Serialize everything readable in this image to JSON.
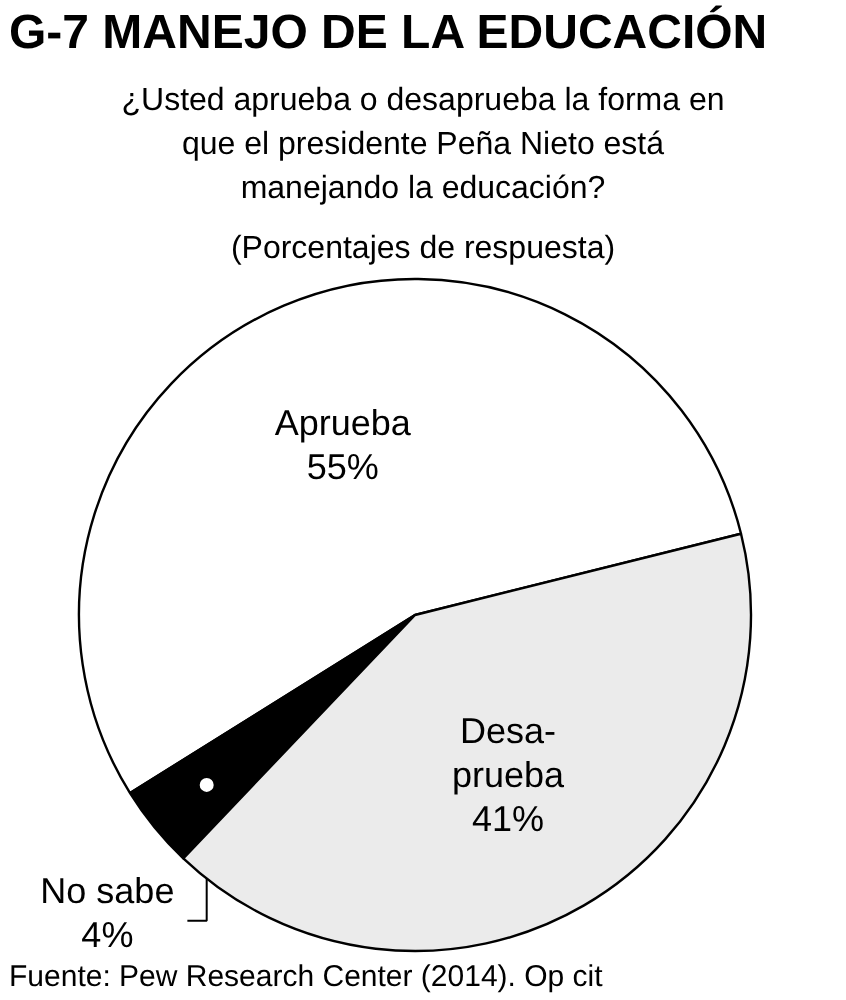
{
  "chart_data": {
    "type": "pie",
    "title": "G-7 MANEJO DE LA EDUCACIÓN",
    "subtitle": "¿Usted aprueba o desaprueba la forma en\nque el presidente Peña Nieto está\nmanejando la educación?\n(Porcentajes de respuesta)",
    "categories": [
      "Aprueba",
      "No sabe",
      "Desa-\nprueba"
    ],
    "values": [
      55,
      4,
      41
    ],
    "colors": [
      "#ffffff",
      "#000000",
      "#ebebeb"
    ],
    "value_labels": [
      "55%",
      "4%",
      "41%"
    ],
    "annotations": [
      "Fuente: Pew Research Center (2014).  Op cit"
    ]
  }
}
